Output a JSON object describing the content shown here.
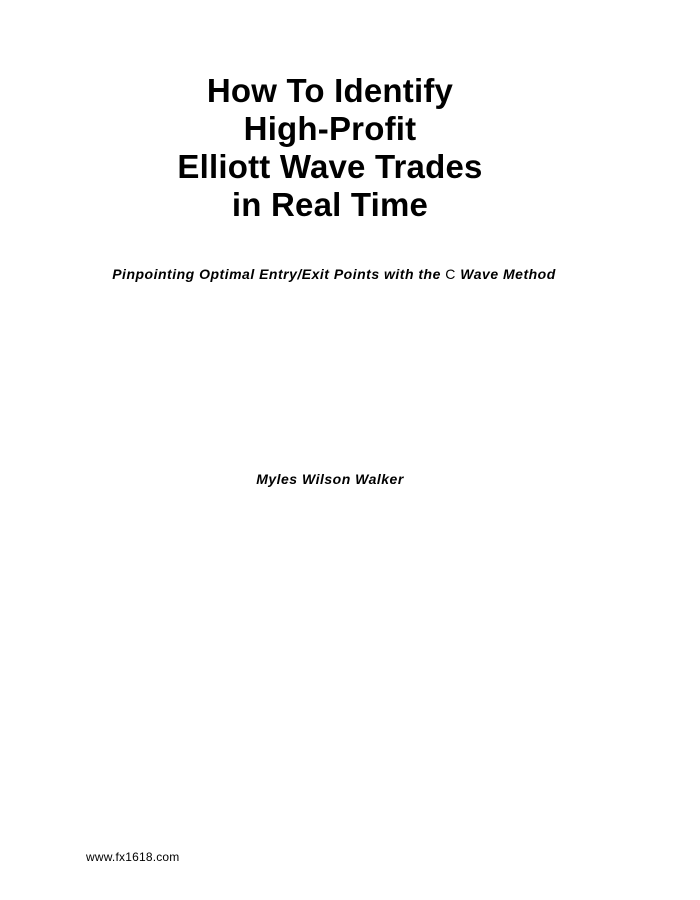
{
  "title": {
    "lines": [
      "How To Identify",
      "High-Profit",
      "Elliott Wave Trades",
      "in Real Time"
    ]
  },
  "subtitle": {
    "part1": "Pinpointing Optimal Entry/Exit Points with the ",
    "part2": "C",
    "part3": " Wave Method"
  },
  "author": "Myles Wilson Walker",
  "footer": {
    "url": "www.fx1618.com"
  }
}
